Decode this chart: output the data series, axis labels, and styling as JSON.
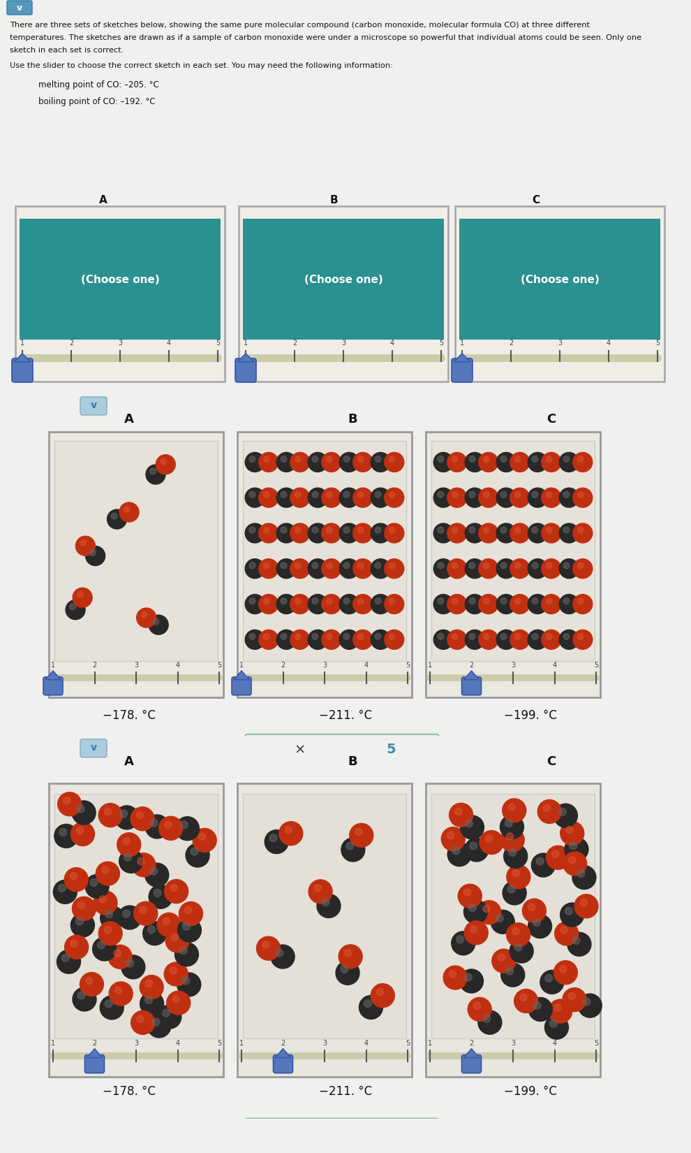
{
  "bg_white": "#f0f0ee",
  "bg_wave1": "#c8d4cc",
  "bg_wave2": "#c4cec8",
  "panel_outer_bg": "#ece8e2",
  "panel_inner_bg": "#e8e4de",
  "text_color": "#222222",
  "title_line1": "There are three sets of sketches below, showing the same pure molecular compound (carbon monoxide, molecular formula CO) at three different",
  "title_line2": "temperatures. The sketches are drawn as if a sample of carbon monoxide were under a microscope so powerful that individual atoms could be seen. Only one",
  "title_line3": "sketch in each set is correct.",
  "subtitle_text": "Use the slider to choose the correct sketch in each set. You may need the following information:",
  "melting_point": "melting point of CO: –205. °C",
  "boiling_point": "boiling point of CO: –192. °C",
  "temperatures": [
    "−178. °C",
    "−211. °C",
    "−199. °C"
  ],
  "dark_color": "#282828",
  "red_color": "#c03010",
  "teal_color": "#2a9090",
  "slider_color": "#5577bb",
  "slider_track": "#ccccaa",
  "vbtn_color": "#5599bb",
  "feedback_bg": "#e0ece8",
  "feedback_border": "#99bbaa"
}
